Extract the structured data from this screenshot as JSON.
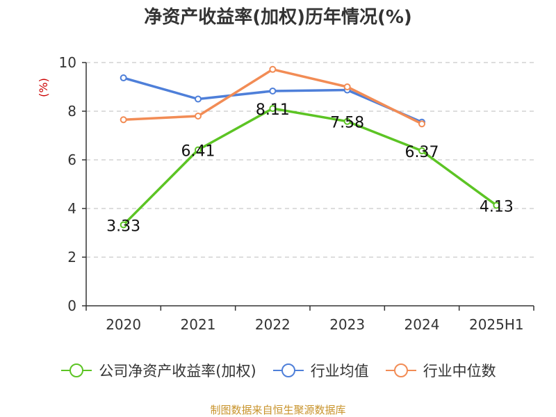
{
  "colors": {
    "roe": "#5cc424",
    "industry_avg": "#4e7fd9",
    "industry_median": "#f28c55",
    "ylabel": "#cc0000",
    "axis": "#333333",
    "grid": "#bbbbbb",
    "source": "#c8932b"
  },
  "chart_data": {
    "type": "line",
    "title": "净资产收益率(加权)历年情况(%)",
    "ylabel": "(%)",
    "xlabel": "",
    "categories": [
      "2020",
      "2021",
      "2022",
      "2023",
      "2024",
      "2025H1"
    ],
    "ylim": [
      0,
      10
    ],
    "yticks": [
      0,
      2,
      4,
      6,
      8,
      10
    ],
    "grid": true,
    "legend_position": "bottom",
    "series": [
      {
        "name": "公司净资产收益率(加权)",
        "values": [
          3.33,
          6.41,
          8.11,
          7.58,
          6.37,
          4.13
        ],
        "labels": [
          "3.33",
          "6.41",
          "8.11",
          "7.58",
          "6.37",
          "4.13"
        ],
        "color_key": "roe"
      },
      {
        "name": "行业均值",
        "values": [
          9.37,
          8.5,
          8.83,
          8.87,
          7.55,
          null
        ],
        "color_key": "industry_avg"
      },
      {
        "name": "行业中位数",
        "values": [
          7.65,
          7.8,
          9.72,
          9.0,
          7.48,
          null
        ],
        "color_key": "industry_median"
      }
    ]
  },
  "source_note": "制图数据来自恒生聚源数据库"
}
